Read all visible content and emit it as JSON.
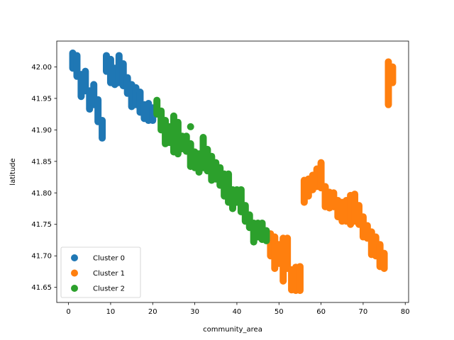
{
  "chart_data": {
    "type": "scatter",
    "xlabel": "community_area",
    "ylabel": "latitude",
    "xlim": [
      -2.8,
      80.8
    ],
    "ylim": [
      41.626,
      42.041
    ],
    "x_ticks": [
      0,
      10,
      20,
      30,
      40,
      50,
      60,
      70,
      80
    ],
    "y_ticks": [
      41.65,
      41.7,
      41.75,
      41.8,
      41.85,
      41.9,
      41.95,
      42.0
    ],
    "grid": false,
    "legend_position": "lower-left",
    "series": [
      {
        "name": "Cluster 0",
        "color": "#1f77b4",
        "columns": [
          {
            "x": 1,
            "y_min": 41.998,
            "y_max": 42.022
          },
          {
            "x": 2,
            "y_min": 41.985,
            "y_max": 42.018
          },
          {
            "x": 3,
            "y_min": 41.953,
            "y_max": 41.988
          },
          {
            "x": 4,
            "y_min": 41.962,
            "y_max": 41.993
          },
          {
            "x": 5,
            "y_min": 41.933,
            "y_max": 41.962
          },
          {
            "x": 6,
            "y_min": 41.94,
            "y_max": 41.972
          },
          {
            "x": 7,
            "y_min": 41.913,
            "y_max": 41.948
          },
          {
            "x": 8,
            "y_min": 41.887,
            "y_max": 41.915
          },
          {
            "x": 9,
            "y_min": 41.993,
            "y_max": 42.018
          },
          {
            "x": 10,
            "y_min": 41.975,
            "y_max": 42.012
          },
          {
            "x": 11,
            "y_min": 41.972,
            "y_max": 41.998
          },
          {
            "x": 12,
            "y_min": 41.975,
            "y_max": 42.018
          },
          {
            "x": 13,
            "y_min": 41.97,
            "y_max": 42.005
          },
          {
            "x": 14,
            "y_min": 41.958,
            "y_max": 41.983
          },
          {
            "x": 15,
            "y_min": 41.937,
            "y_max": 41.972
          },
          {
            "x": 16,
            "y_min": 41.94,
            "y_max": 41.967
          },
          {
            "x": 17,
            "y_min": 41.928,
            "y_max": 41.96
          },
          {
            "x": 18,
            "y_min": 41.918,
            "y_max": 41.94
          },
          {
            "x": 19,
            "y_min": 41.915,
            "y_max": 41.942
          },
          {
            "x": 20,
            "y_min": 41.915,
            "y_max": 41.935
          }
        ]
      },
      {
        "name": "Cluster 1",
        "color": "#ff7f0e",
        "columns": [
          {
            "x": 48,
            "y_min": 41.7,
            "y_max": 41.735
          },
          {
            "x": 49,
            "y_min": 41.68,
            "y_max": 41.73
          },
          {
            "x": 50,
            "y_min": 41.688,
            "y_max": 41.718
          },
          {
            "x": 51,
            "y_min": 41.66,
            "y_max": 41.728
          },
          {
            "x": 52,
            "y_min": 41.68,
            "y_max": 41.728
          },
          {
            "x": 53,
            "y_min": 41.646,
            "y_max": 41.678
          },
          {
            "x": 54,
            "y_min": 41.645,
            "y_max": 41.682
          },
          {
            "x": 55,
            "y_min": 41.645,
            "y_max": 41.683
          },
          {
            "x": 56,
            "y_min": 41.785,
            "y_max": 41.82
          },
          {
            "x": 57,
            "y_min": 41.795,
            "y_max": 41.822
          },
          {
            "x": 58,
            "y_min": 41.805,
            "y_max": 41.828
          },
          {
            "x": 59,
            "y_min": 41.81,
            "y_max": 41.838
          },
          {
            "x": 60,
            "y_min": 41.808,
            "y_max": 41.848
          },
          {
            "x": 61,
            "y_min": 41.778,
            "y_max": 41.81
          },
          {
            "x": 62,
            "y_min": 41.776,
            "y_max": 41.801
          },
          {
            "x": 63,
            "y_min": 41.778,
            "y_max": 41.8
          },
          {
            "x": 64,
            "y_min": 41.762,
            "y_max": 41.788
          },
          {
            "x": 65,
            "y_min": 41.755,
            "y_max": 41.785
          },
          {
            "x": 66,
            "y_min": 41.755,
            "y_max": 41.788
          },
          {
            "x": 67,
            "y_min": 41.75,
            "y_max": 41.796
          },
          {
            "x": 68,
            "y_min": 41.755,
            "y_max": 41.798
          },
          {
            "x": 69,
            "y_min": 41.75,
            "y_max": 41.78
          },
          {
            "x": 70,
            "y_min": 41.73,
            "y_max": 41.762
          },
          {
            "x": 71,
            "y_min": 41.728,
            "y_max": 41.748
          },
          {
            "x": 72,
            "y_min": 41.702,
            "y_max": 41.738
          },
          {
            "x": 73,
            "y_min": 41.7,
            "y_max": 41.73
          },
          {
            "x": 74,
            "y_min": 41.683,
            "y_max": 41.718
          },
          {
            "x": 75,
            "y_min": 41.68,
            "y_max": 41.704
          },
          {
            "x": 76,
            "y_min": 41.94,
            "y_max": 42.008
          },
          {
            "x": 77,
            "y_min": 41.975,
            "y_max": 42.0
          }
        ]
      },
      {
        "name": "Cluster 2",
        "color": "#2ca02c",
        "columns": [
          {
            "x": 21,
            "y_min": 41.925,
            "y_max": 41.947
          },
          {
            "x": 22,
            "y_min": 41.9,
            "y_max": 41.93
          },
          {
            "x": 23,
            "y_min": 41.878,
            "y_max": 41.915
          },
          {
            "x": 24,
            "y_min": 41.88,
            "y_max": 41.905
          },
          {
            "x": 25,
            "y_min": 41.865,
            "y_max": 41.922
          },
          {
            "x": 26,
            "y_min": 41.862,
            "y_max": 41.912
          },
          {
            "x": 27,
            "y_min": 41.87,
            "y_max": 41.89
          },
          {
            "x": 28,
            "y_min": 41.866,
            "y_max": 41.89
          },
          {
            "x": 29,
            "y_min": 41.842,
            "y_max": 41.878
          },
          {
            "x": 30,
            "y_min": 41.84,
            "y_max": 41.865
          },
          {
            "x": 31,
            "y_min": 41.833,
            "y_max": 41.862
          },
          {
            "x": 32,
            "y_min": 41.84,
            "y_max": 41.888
          },
          {
            "x": 33,
            "y_min": 41.835,
            "y_max": 41.869
          },
          {
            "x": 34,
            "y_min": 41.82,
            "y_max": 41.858
          },
          {
            "x": 35,
            "y_min": 41.822,
            "y_max": 41.848
          },
          {
            "x": 36,
            "y_min": 41.812,
            "y_max": 41.84
          },
          {
            "x": 37,
            "y_min": 41.795,
            "y_max": 41.83
          },
          {
            "x": 38,
            "y_min": 41.785,
            "y_max": 41.83
          },
          {
            "x": 39,
            "y_min": 41.775,
            "y_max": 41.805
          },
          {
            "x": 40,
            "y_min": 41.785,
            "y_max": 41.805
          },
          {
            "x": 41,
            "y_min": 41.77,
            "y_max": 41.805
          },
          {
            "x": 42,
            "y_min": 41.755,
            "y_max": 41.78
          },
          {
            "x": 43,
            "y_min": 41.745,
            "y_max": 41.765
          },
          {
            "x": 44,
            "y_min": 41.722,
            "y_max": 41.752
          },
          {
            "x": 45,
            "y_min": 41.73,
            "y_max": 41.752
          },
          {
            "x": 46,
            "y_min": 41.726,
            "y_max": 41.752
          },
          {
            "x": 47,
            "y_min": 41.724,
            "y_max": 41.74
          }
        ],
        "points": [
          {
            "x": 29,
            "y": 41.905
          }
        ]
      }
    ]
  }
}
